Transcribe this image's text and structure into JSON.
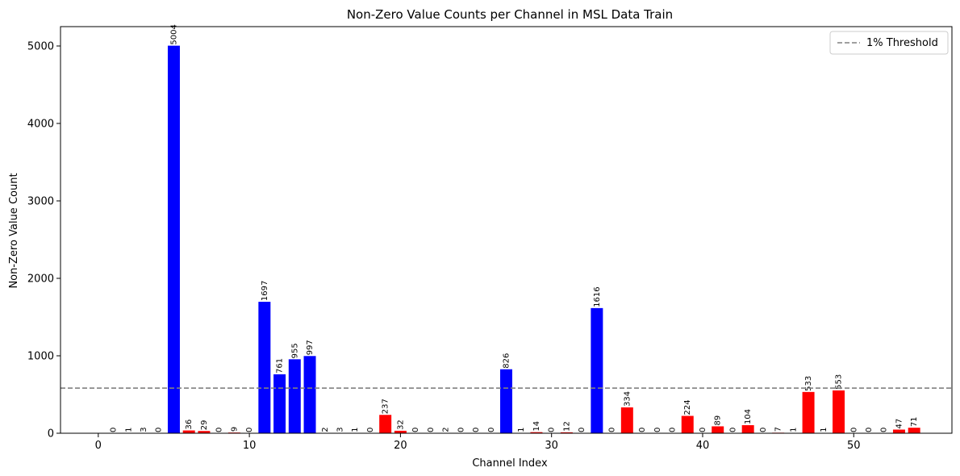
{
  "chart_data": {
    "type": "bar",
    "title": "Non-Zero Value Counts per Channel in MSL Data Train",
    "xlabel": "Channel Index",
    "ylabel": "Non-Zero Value Count",
    "xlim": [
      -2.5,
      56.5
    ],
    "ylim": [
      0,
      5250
    ],
    "xticks": [
      0,
      10,
      20,
      30,
      40,
      50
    ],
    "yticks": [
      0,
      1000,
      2000,
      3000,
      4000,
      5000
    ],
    "grid": false,
    "legend_position": "top-right",
    "threshold": {
      "label": "1% Threshold",
      "value": 583,
      "color": "#808080",
      "style": "dashed"
    },
    "colors": {
      "above_threshold": "#0000ff",
      "below_threshold": "#ff0000"
    },
    "x": [
      0,
      1,
      2,
      3,
      4,
      5,
      6,
      7,
      8,
      9,
      10,
      11,
      12,
      13,
      14,
      15,
      16,
      17,
      18,
      19,
      20,
      21,
      22,
      23,
      24,
      25,
      26,
      27,
      28,
      29,
      30,
      31,
      32,
      33,
      34,
      35,
      36,
      37,
      38,
      39,
      40,
      41,
      42,
      43,
      44,
      45,
      46,
      47,
      48,
      49,
      50,
      51,
      52,
      53,
      54
    ],
    "values": [
      0,
      0,
      1,
      3,
      0,
      5004,
      36,
      29,
      0,
      9,
      0,
      1697,
      761,
      955,
      997,
      2,
      3,
      1,
      0,
      237,
      32,
      0,
      0,
      2,
      0,
      0,
      0,
      826,
      1,
      14,
      0,
      12,
      0,
      1616,
      0,
      334,
      0,
      0,
      0,
      224,
      0,
      89,
      0,
      104,
      0,
      7,
      1,
      533,
      1,
      553,
      0,
      0,
      0,
      47,
      71
    ],
    "labels_shown_from_index": 1
  }
}
